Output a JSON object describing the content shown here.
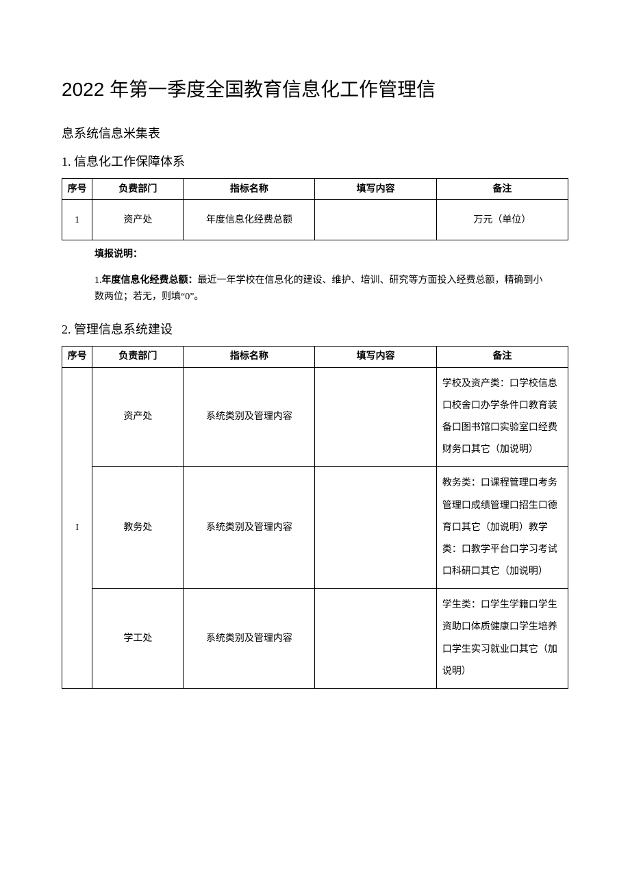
{
  "title": {
    "line1": "2022 年第一季度全国教育信息化工作管理信",
    "line2": "息系统信息米集表"
  },
  "section1": {
    "heading": "1. 信息化工作保障体系",
    "columns": [
      "序号",
      "负费部门",
      "指标名称",
      "填写内容",
      "备注"
    ],
    "row": {
      "seq": "1",
      "dept": "资产处",
      "metric": "年度信息化经费总额",
      "content": "",
      "remark": "万元（单位）"
    },
    "note_head": "填报说明：",
    "note_num": "1.",
    "note_label": "年度信息化经费总额：",
    "note_text": "最近一年学校在信息化的建设、维护、培训、研究等方面投入经费总额，精确到小数两位；若无，则填“0”。"
  },
  "section2": {
    "heading": "2. 管理信息系统建设",
    "columns": [
      "序号",
      "负责部门",
      "指标名称",
      "填写内容",
      "备注"
    ],
    "seq": "I",
    "rows": [
      {
        "dept": "资产处",
        "metric": "系统类别及管理内容",
        "content": "",
        "remark": "学校及资产类：口学校信息口校舍口办学条件口教育装备口图书馆口实验室口经费财务口其它（加说明）"
      },
      {
        "dept": "教务处",
        "metric": "系统类别及管理内容",
        "content": "",
        "remark": "教务类：口课程管理口考务管理口成绩管理口招生口德育口其它（加说明）教学类：口教学平台口学习考试口科研口其它（加说明）"
      },
      {
        "dept": "学工处",
        "metric": "系统类别及管理内容",
        "content": "",
        "remark": "学生类：口学生学籍口学生资助口体质健康口学生培养口学生实习就业口其它（加说明）"
      }
    ]
  },
  "style": {
    "text_color": "#000000",
    "background_color": "#ffffff",
    "border_color": "#000000",
    "title_fontsize": 28,
    "subtitle_fontsize": 18,
    "body_fontsize": 14
  }
}
